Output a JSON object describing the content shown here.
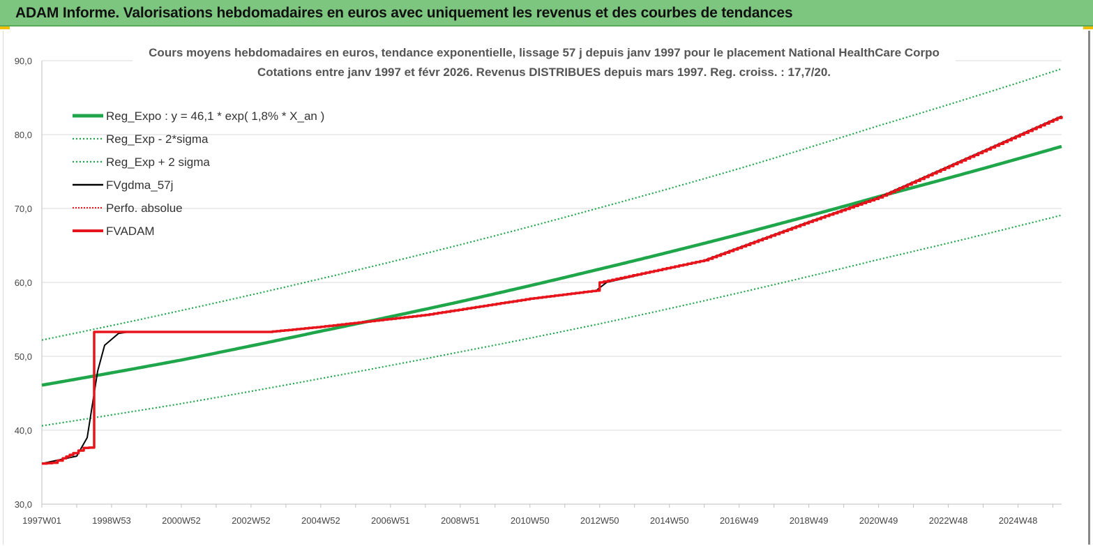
{
  "banner": {
    "title": "ADAM Informe. Valorisations hebdomadaires en euros avec uniquement les revenus et des courbes de tendances"
  },
  "colors": {
    "banner_bg": "#7dc67f",
    "reg_green": "#1fa64a",
    "red": "#e8141c",
    "black": "#000000"
  },
  "chart_data": {
    "type": "line",
    "title_lines": [
      "Cours moyens hebdomadaires en euros, tendance exponentielle, lissage 57 j depuis janv 1997  pour le placement National HealthCare Corpo",
      "Cotations entre janv 1997 et févr 2026. Revenus DISTRIBUES depuis mars 1997. Reg. croiss. : 17,7/20."
    ],
    "ylim": [
      30,
      90
    ],
    "y_ticks": [
      "30,0",
      "40,0",
      "50,0",
      "60,0",
      "70,0",
      "80,0",
      "90,0"
    ],
    "y_tick_values": [
      30,
      40,
      50,
      60,
      70,
      80,
      90
    ],
    "x_range_years": [
      1997.0,
      2026.25
    ],
    "x_ticks": [
      "1997W01",
      "1998W53",
      "2000W52",
      "2002W52",
      "2004W52",
      "2006W51",
      "2008W51",
      "2010W50",
      "2012W50",
      "2014W50",
      "2016W49",
      "2018W49",
      "2020W49",
      "2022W48",
      "2024W48"
    ],
    "x_tick_years": [
      1997.0,
      1999.0,
      2001.0,
      2003.0,
      2005.0,
      2007.0,
      2009.0,
      2011.0,
      2013.0,
      2015.0,
      2017.0,
      2019.0,
      2021.0,
      2023.0,
      2025.0
    ],
    "grid": true,
    "legend_position": "top-left",
    "legend": [
      {
        "label": "Reg_Expo : y = 46,1 * exp( 1,8% *  X_an )",
        "color": "#1fa64a",
        "style": "thick"
      },
      {
        "label": "Reg_Exp - 2*sigma",
        "color": "#1fa64a",
        "style": "dotted"
      },
      {
        "label": "Reg_Exp + 2 sigma",
        "color": "#1fa64a",
        "style": "dotted"
      },
      {
        "label": "FVgdma_57j",
        "color": "#000000",
        "style": "solid"
      },
      {
        "label": "Perfo. absolue",
        "color": "#e8141c",
        "style": "dotted"
      },
      {
        "label": "FVADAM",
        "color": "#e8141c",
        "style": "thick"
      }
    ],
    "series": [
      {
        "name": "Reg_Expo : y = 46,1 * exp( 1,8% *  X_an )",
        "x": [
          1997.0,
          2001.0,
          2005.0,
          2009.0,
          2013.0,
          2017.0,
          2021.0,
          2026.25
        ],
        "y": [
          46.1,
          49.5,
          53.4,
          57.4,
          61.8,
          66.5,
          71.6,
          78.4
        ]
      },
      {
        "name": "Reg_Exp - 2*sigma",
        "x": [
          1997.0,
          2001.0,
          2005.0,
          2009.0,
          2013.0,
          2017.0,
          2021.0,
          2026.25
        ],
        "y": [
          40.6,
          43.6,
          47.0,
          50.6,
          54.4,
          58.6,
          63.1,
          69.1
        ]
      },
      {
        "name": "Reg_Exp + 2 sigma",
        "x": [
          1997.0,
          2001.0,
          2005.0,
          2009.0,
          2013.0,
          2017.0,
          2021.0,
          2026.25
        ],
        "y": [
          52.2,
          56.2,
          60.5,
          65.1,
          70.1,
          75.4,
          81.2,
          88.9
        ]
      },
      {
        "name": "FVgdma_57j",
        "x": [
          1997.0,
          1998.0,
          1998.3,
          1998.45,
          1998.6,
          1998.8,
          1999.2,
          1999.5,
          2003.5,
          2005.0,
          2008.0,
          2011.0,
          2012.9,
          2013.2,
          2016.0,
          2019.0,
          2021.0,
          2026.25
        ],
        "y": [
          35.5,
          36.5,
          39.0,
          43.5,
          48.0,
          51.5,
          53.1,
          53.3,
          53.3,
          54.0,
          55.6,
          57.8,
          58.9,
          60.0,
          63.0,
          68.2,
          71.5,
          82.5
        ]
      },
      {
        "name": "FVADAM",
        "x": [
          1997.0,
          1997.3,
          1997.6,
          1997.9,
          1998.2,
          1998.5,
          1998.5,
          1999.5,
          2003.5,
          2005.0,
          2008.0,
          2011.0,
          2012.9,
          2013.0,
          2016.0,
          2019.0,
          2021.0,
          2026.25
        ],
        "y": [
          35.5,
          35.6,
          36.2,
          36.9,
          37.6,
          37.7,
          53.3,
          53.3,
          53.3,
          54.0,
          55.6,
          57.8,
          58.9,
          60.0,
          63.0,
          68.2,
          71.5,
          82.5
        ]
      }
    ]
  }
}
